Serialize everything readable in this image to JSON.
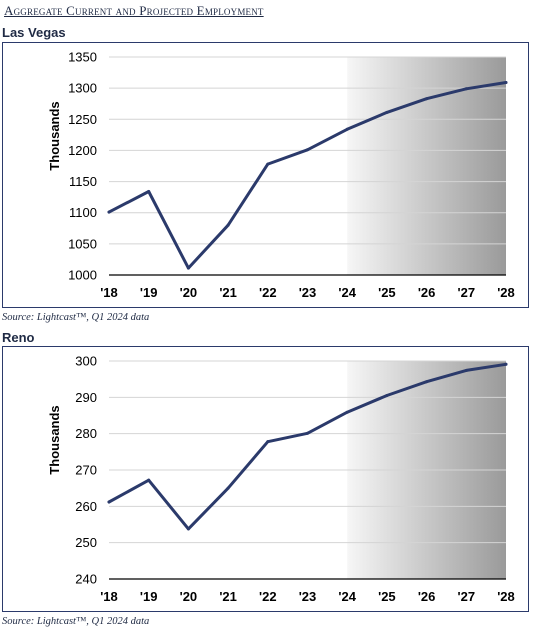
{
  "title": "Aggregate Current and Projected Employment",
  "chart_data": [
    {
      "type": "line",
      "region": "Las Vegas",
      "ylabel": "Thousands",
      "categories": [
        "'18",
        "'19",
        "'20",
        "'21",
        "'22",
        "'23",
        "'24",
        "'25",
        "'26",
        "'27",
        "'28"
      ],
      "values": [
        1101,
        1134,
        1011,
        1080,
        1178,
        1201,
        1234,
        1261,
        1283,
        1299,
        1309
      ],
      "ylim": [
        1000,
        1350
      ],
      "yticks": [
        "1000",
        "1050",
        "1100",
        "1150",
        "1200",
        "1250",
        "1300",
        "1350"
      ],
      "projection_start": "'24",
      "line_color": "#2b3a6b",
      "source": "Source: Lightcast™, Q1 2024 data"
    },
    {
      "type": "line",
      "region": "Reno",
      "ylabel": "Thousands",
      "categories": [
        "'18",
        "'19",
        "'20",
        "'21",
        "'22",
        "'23",
        "'24",
        "'25",
        "'26",
        "'27",
        "'28"
      ],
      "values": [
        261.2,
        267.2,
        253.8,
        265.0,
        277.8,
        280.1,
        285.9,
        290.5,
        294.3,
        297.4,
        299.1
      ],
      "ylim": [
        240,
        300
      ],
      "yticks": [
        "240",
        "250",
        "260",
        "270",
        "280",
        "290",
        "300"
      ],
      "projection_start": "'24",
      "line_color": "#2b3a6b",
      "source": "Source: Lightcast™, Q1 2024 data"
    }
  ]
}
